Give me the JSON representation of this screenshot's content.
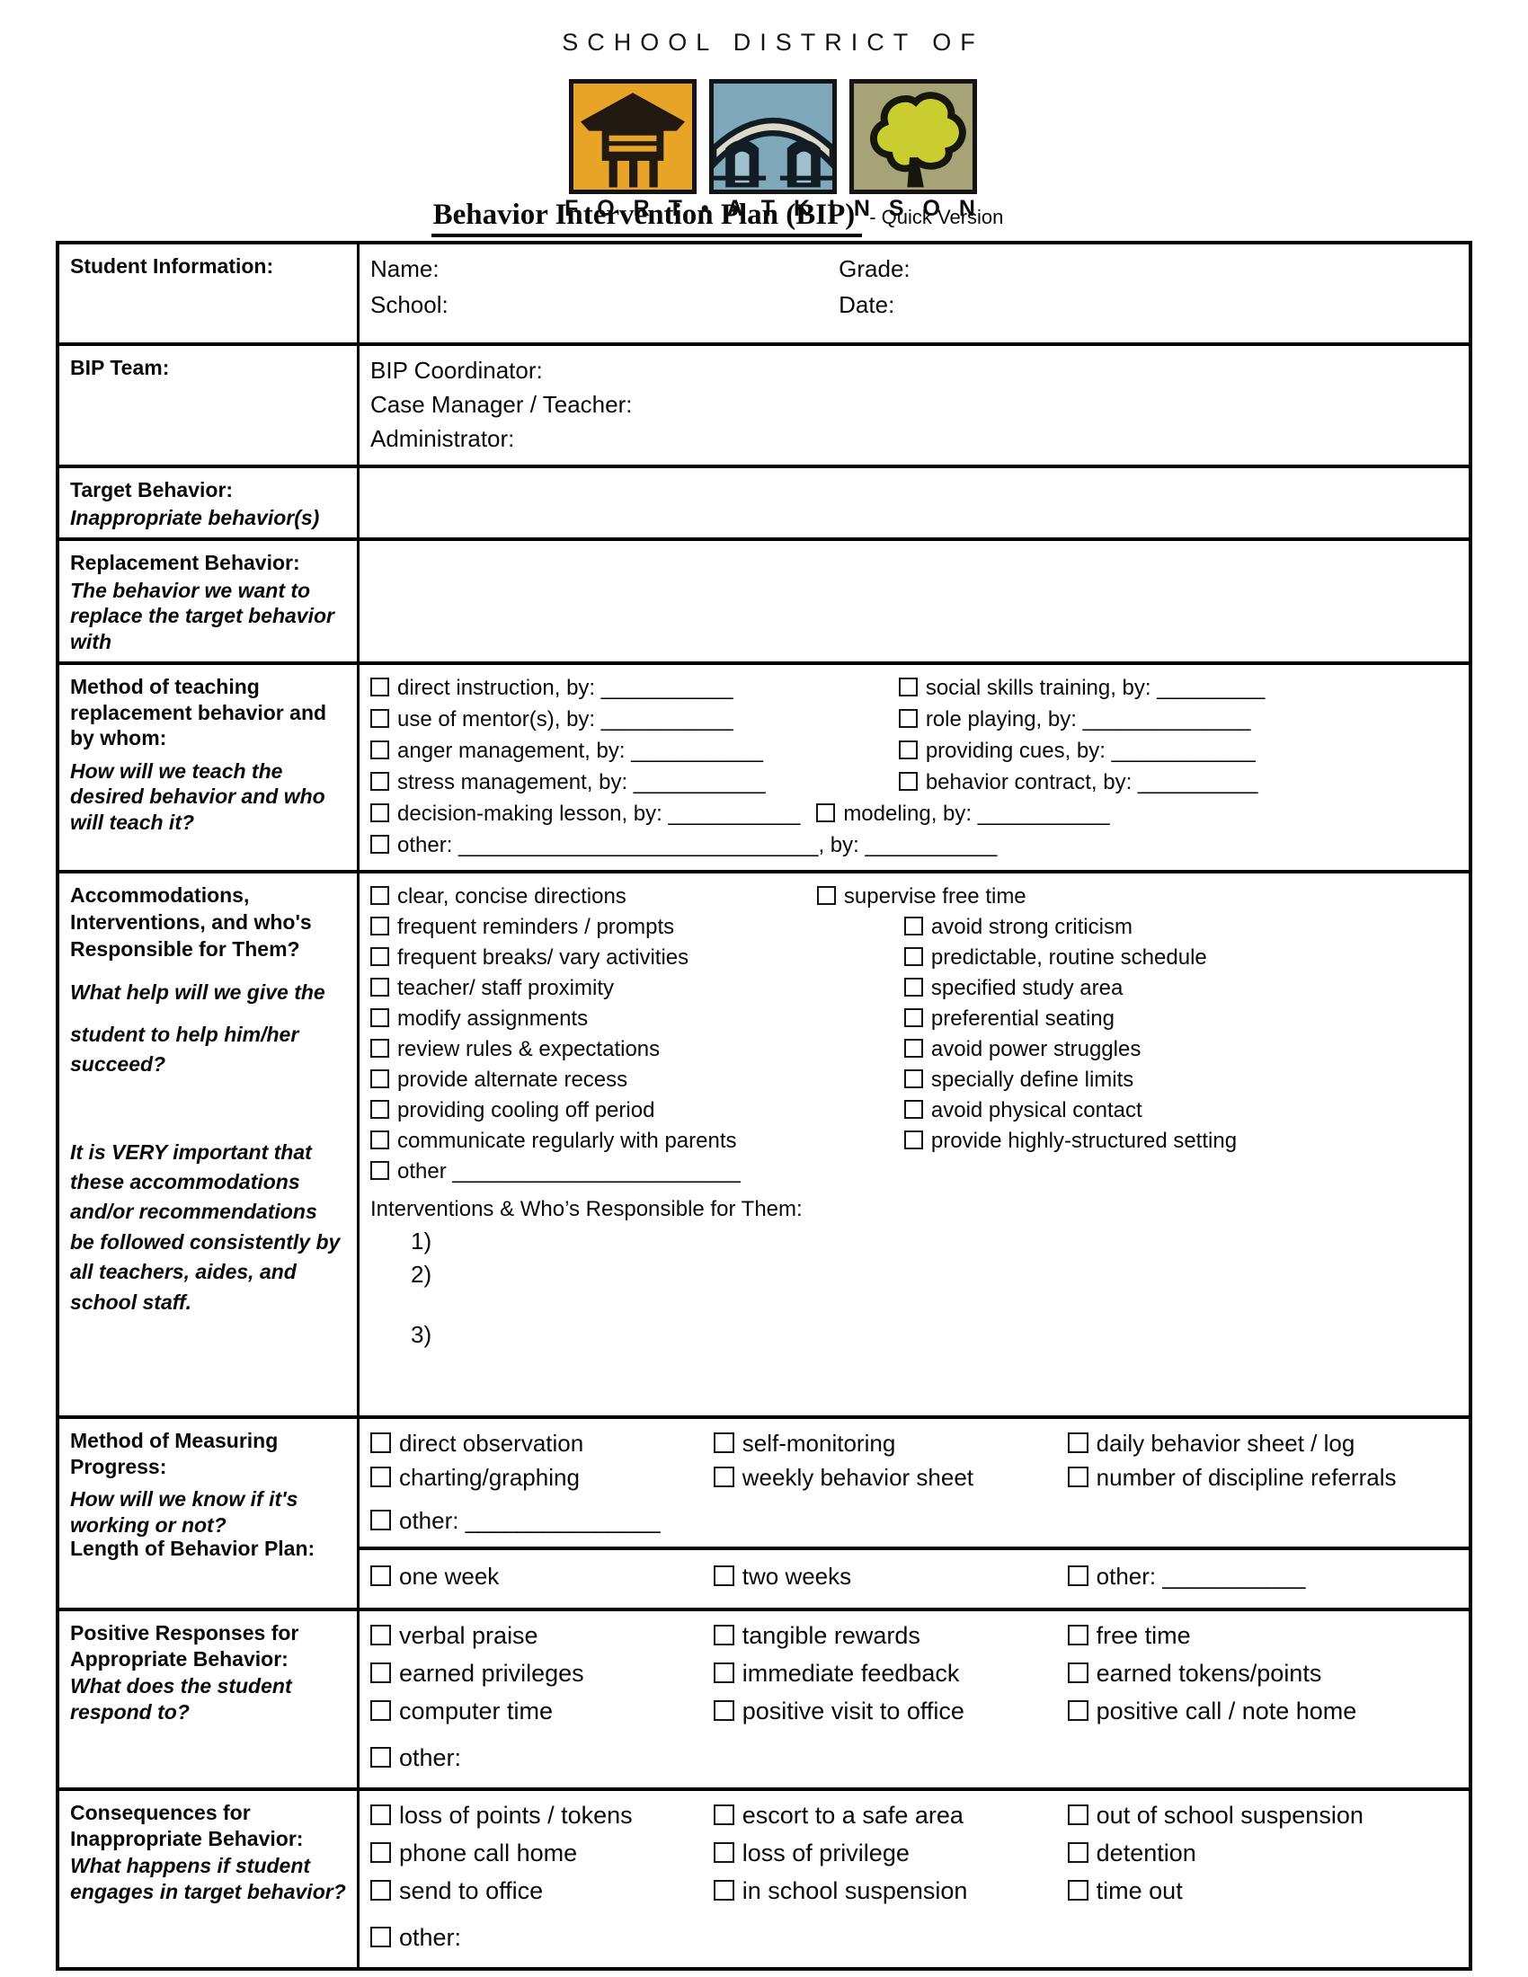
{
  "header": {
    "district": "SCHOOL DISTRICT OF",
    "city": "F O R T • A T K I N S O N",
    "title": "Behavior Intervention Plan (BIP)",
    "suffix": "- Quick Version",
    "logo_tiles": [
      "schoolhouse-icon",
      "bridge-icon",
      "tree-icon"
    ],
    "colors": {
      "tile1_bg": "#E8A426",
      "tile2_bg": "#7FA9BA",
      "tile3_bg": "#A6A377",
      "tree_fill": "#C9CD2F",
      "ink": "#161616"
    }
  },
  "sections": {
    "student_info": {
      "label": "Student Information:",
      "lines": [
        [
          {
            "t": "Name:",
            "plain": true,
            "w": 43
          },
          {
            "t": "Grade:",
            "plain": true
          }
        ],
        [
          {
            "t": "School:",
            "plain": true,
            "w": 43
          },
          {
            "t": "Date:",
            "plain": true
          }
        ]
      ]
    },
    "bip_team": {
      "label": "BIP Team:",
      "lines": [
        [
          {
            "t": "BIP Coordinator:",
            "plain": true
          }
        ],
        [
          {
            "t": "Case Manager / Teacher:",
            "plain": true
          }
        ],
        [
          {
            "t": "Administrator:",
            "plain": true
          }
        ]
      ]
    },
    "target_behavior": {
      "label": "Target Behavior:",
      "sublabel": "Inappropriate behavior(s)"
    },
    "replacement_behavior": {
      "label": "Replacement Behavior:",
      "sublabel": "The behavior we want to replace the target behavior with"
    },
    "method_teaching": {
      "label": "Method of teaching replacement behavior and by whom:",
      "sublabel": "How will we teach the desired behavior and who will teach it?",
      "lines": [
        [
          {
            "t": "direct instruction, by: ___________",
            "w": 48.5
          },
          {
            "t": "social skills training, by: _________"
          }
        ],
        [
          {
            "t": "use of mentor(s), by: ___________",
            "w": 48.5
          },
          {
            "t": "role playing, by: ______________"
          }
        ],
        [
          {
            "t": "anger management, by: ___________",
            "w": 48.5
          },
          {
            "t": "providing cues, by: ____________"
          }
        ],
        [
          {
            "t": "stress management, by: ___________",
            "w": 48.5
          },
          {
            "t": "behavior contract, by: __________"
          }
        ],
        [
          {
            "t": "decision-making lesson, by: ___________"
          },
          {
            "t": "modeling, by: ___________",
            "ml": 18
          }
        ],
        [
          {
            "t": "other: ______________________________, by: ___________"
          }
        ]
      ]
    },
    "accommodations": {
      "label": "Accommodations, Interventions, and who's Responsible for Them?",
      "sub1": "What help will we give the",
      "sub2": "student to help him/her succeed?",
      "sub3": "It is VERY important that these accommodations and/or recommendations be followed consistently by all teachers, aides, and school staff.",
      "lines": [
        [
          {
            "t": "clear, concise directions",
            "w": 41
          },
          {
            "t": "supervise free time"
          }
        ],
        [
          {
            "t": "frequent reminders / prompts",
            "w": 49
          },
          {
            "t": "avoid strong criticism"
          }
        ],
        [
          {
            "t": "frequent breaks/ vary activities",
            "w": 49
          },
          {
            "t": "predictable, routine schedule"
          }
        ],
        [
          {
            "t": "teacher/ staff proximity",
            "w": 49
          },
          {
            "t": "specified study area"
          }
        ],
        [
          {
            "t": "modify assignments",
            "w": 49
          },
          {
            "t": "preferential seating"
          }
        ],
        [
          {
            "t": "review rules & expectations",
            "w": 49
          },
          {
            "t": "avoid power struggles"
          }
        ],
        [
          {
            "t": "provide alternate recess",
            "w": 49
          },
          {
            "t": "specially define limits"
          }
        ],
        [
          {
            "t": "providing cooling off period",
            "w": 49
          },
          {
            "t": "avoid physical contact"
          }
        ],
        [
          {
            "t": "communicate regularly with parents",
            "w": 49
          },
          {
            "t": "provide highly-structured setting"
          }
        ],
        [
          {
            "t": "other ________________________"
          }
        ],
        [
          {
            "t": "Interventions & Who’s Responsible for Them:",
            "plain": true,
            "c": "head"
          }
        ],
        [
          {
            "t": "1)",
            "plain": true,
            "ml": 45,
            "c": "num"
          }
        ],
        [
          {
            "t": "2)",
            "plain": true,
            "ml": 45,
            "c": "num"
          }
        ],
        [
          {
            "t": "3)",
            "plain": true,
            "ml": 45,
            "c": "num mt"
          }
        ]
      ]
    },
    "measuring": {
      "label": "Method of Measuring Progress:",
      "sublabel": "How will we know if it's working or not?",
      "label2": "Length of Behavior Plan:",
      "lines": [
        [
          {
            "t": "direct observation",
            "w": 31.5
          },
          {
            "t": "self-monitoring",
            "w": 32.5
          },
          {
            "t": "daily behavior sheet / log"
          }
        ],
        [
          {
            "t": "charting/graphing",
            "w": 31.5
          },
          {
            "t": "weekly behavior sheet",
            "w": 32.5
          },
          {
            "t": "number of discipline referrals"
          }
        ],
        [
          {
            "t": "other: _______________",
            "c": "mt-sm"
          }
        ]
      ],
      "length_lines": [
        [
          {
            "t": "one week",
            "w": 31.5
          },
          {
            "t": "two weeks",
            "w": 32.5
          },
          {
            "t": "other: ___________"
          }
        ]
      ]
    },
    "positive": {
      "label": "Positive Responses for Appropriate Behavior:",
      "sublabel": "What does the student respond to?",
      "lines": [
        [
          {
            "t": "verbal praise",
            "w": 31.5
          },
          {
            "t": "tangible rewards",
            "w": 32.5
          },
          {
            "t": "free time"
          }
        ],
        [
          {
            "t": "earned privileges",
            "w": 31.5
          },
          {
            "t": "immediate feedback",
            "w": 32.5
          },
          {
            "t": "earned tokens/points"
          }
        ],
        [
          {
            "t": "computer time",
            "w": 31.5
          },
          {
            "t": "positive visit to office",
            "w": 32.5
          },
          {
            "t": "positive call / note home"
          }
        ],
        [
          {
            "t": "other:",
            "c": "mt-sm"
          }
        ]
      ]
    },
    "consequences": {
      "label": "Consequences for Inappropriate Behavior:",
      "sublabel": "What happens if student engages in target behavior?",
      "lines": [
        [
          {
            "t": "loss of points / tokens",
            "w": 31.5
          },
          {
            "t": "escort to a safe area",
            "w": 32.5
          },
          {
            "t": "out of school suspension"
          }
        ],
        [
          {
            "t": "phone call home",
            "w": 31.5
          },
          {
            "t": "loss of privilege",
            "w": 32.5
          },
          {
            "t": "detention"
          }
        ],
        [
          {
            "t": "send to office",
            "w": 31.5
          },
          {
            "t": "in school suspension",
            "w": 32.5
          },
          {
            "t": "time out"
          }
        ],
        [
          {
            "t": "other:",
            "c": "mt-sm"
          }
        ]
      ]
    }
  }
}
